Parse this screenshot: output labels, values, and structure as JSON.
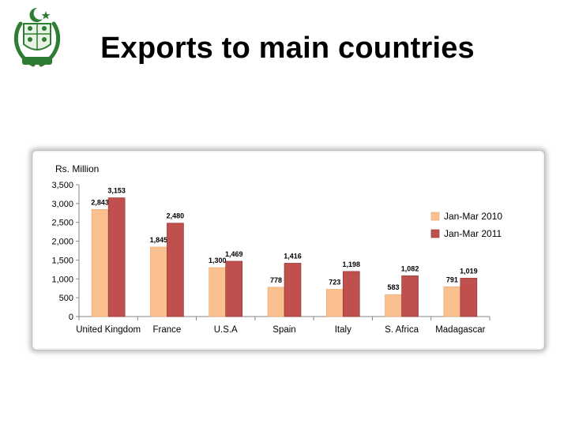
{
  "slide": {
    "title": "Exports to main countries"
  },
  "colors": {
    "series_2010": "#fac090",
    "series_2011": "#c0504d",
    "emblem_green": "#2e7d32"
  },
  "icons": {
    "emblem": "state-emblem-icon"
  },
  "chart_data": {
    "type": "bar",
    "title": "",
    "xlabel": "",
    "ylabel": "Rs. Million",
    "ylim": [
      0,
      3500
    ],
    "yticks": [
      "0",
      "500",
      "1,000",
      "1,500",
      "2,000",
      "2,500",
      "3,000",
      "3,500"
    ],
    "grid": false,
    "legend_position": "right",
    "categories": [
      "United Kingdom",
      "France",
      "U.S.A",
      "Spain",
      "Italy",
      "S. Africa",
      "Madagascar"
    ],
    "series": [
      {
        "name": "Jan-Mar 2010",
        "values": [
          2843,
          1845,
          1300,
          778,
          723,
          583,
          791
        ],
        "labels": [
          "2,843",
          "1,845",
          "1,300",
          "778",
          "723",
          "583",
          "791"
        ]
      },
      {
        "name": "Jan-Mar 2011",
        "values": [
          3153,
          2480,
          1469,
          1416,
          1198,
          1082,
          1019
        ],
        "labels": [
          "3,153",
          "2,480",
          "1,469",
          "1,416",
          "1,198",
          "1,082",
          "1,019"
        ]
      }
    ]
  }
}
